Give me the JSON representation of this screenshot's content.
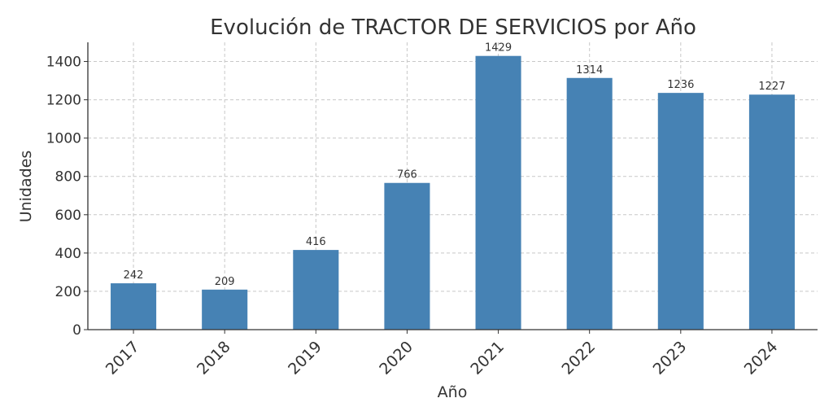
{
  "chart_data": {
    "type": "bar",
    "title": "Evolución de TRACTOR DE SERVICIOS por Año",
    "xlabel": "Año",
    "ylabel": "Unidades",
    "categories": [
      "2017",
      "2018",
      "2019",
      "2020",
      "2021",
      "2022",
      "2023",
      "2024"
    ],
    "values": [
      242,
      209,
      416,
      766,
      1429,
      1314,
      1236,
      1227
    ],
    "data_labels": [
      "242",
      "209",
      "416",
      "766",
      "1429",
      "1314",
      "1236",
      "1227"
    ],
    "ylim": [
      0,
      1500
    ],
    "yticks": [
      0,
      200,
      400,
      600,
      800,
      1000,
      1200,
      1400
    ],
    "ytick_labels": [
      "0",
      "200",
      "400",
      "600",
      "800",
      "1000",
      "1200",
      "1400"
    ],
    "grid": true,
    "bar_color": "#4682b4"
  }
}
